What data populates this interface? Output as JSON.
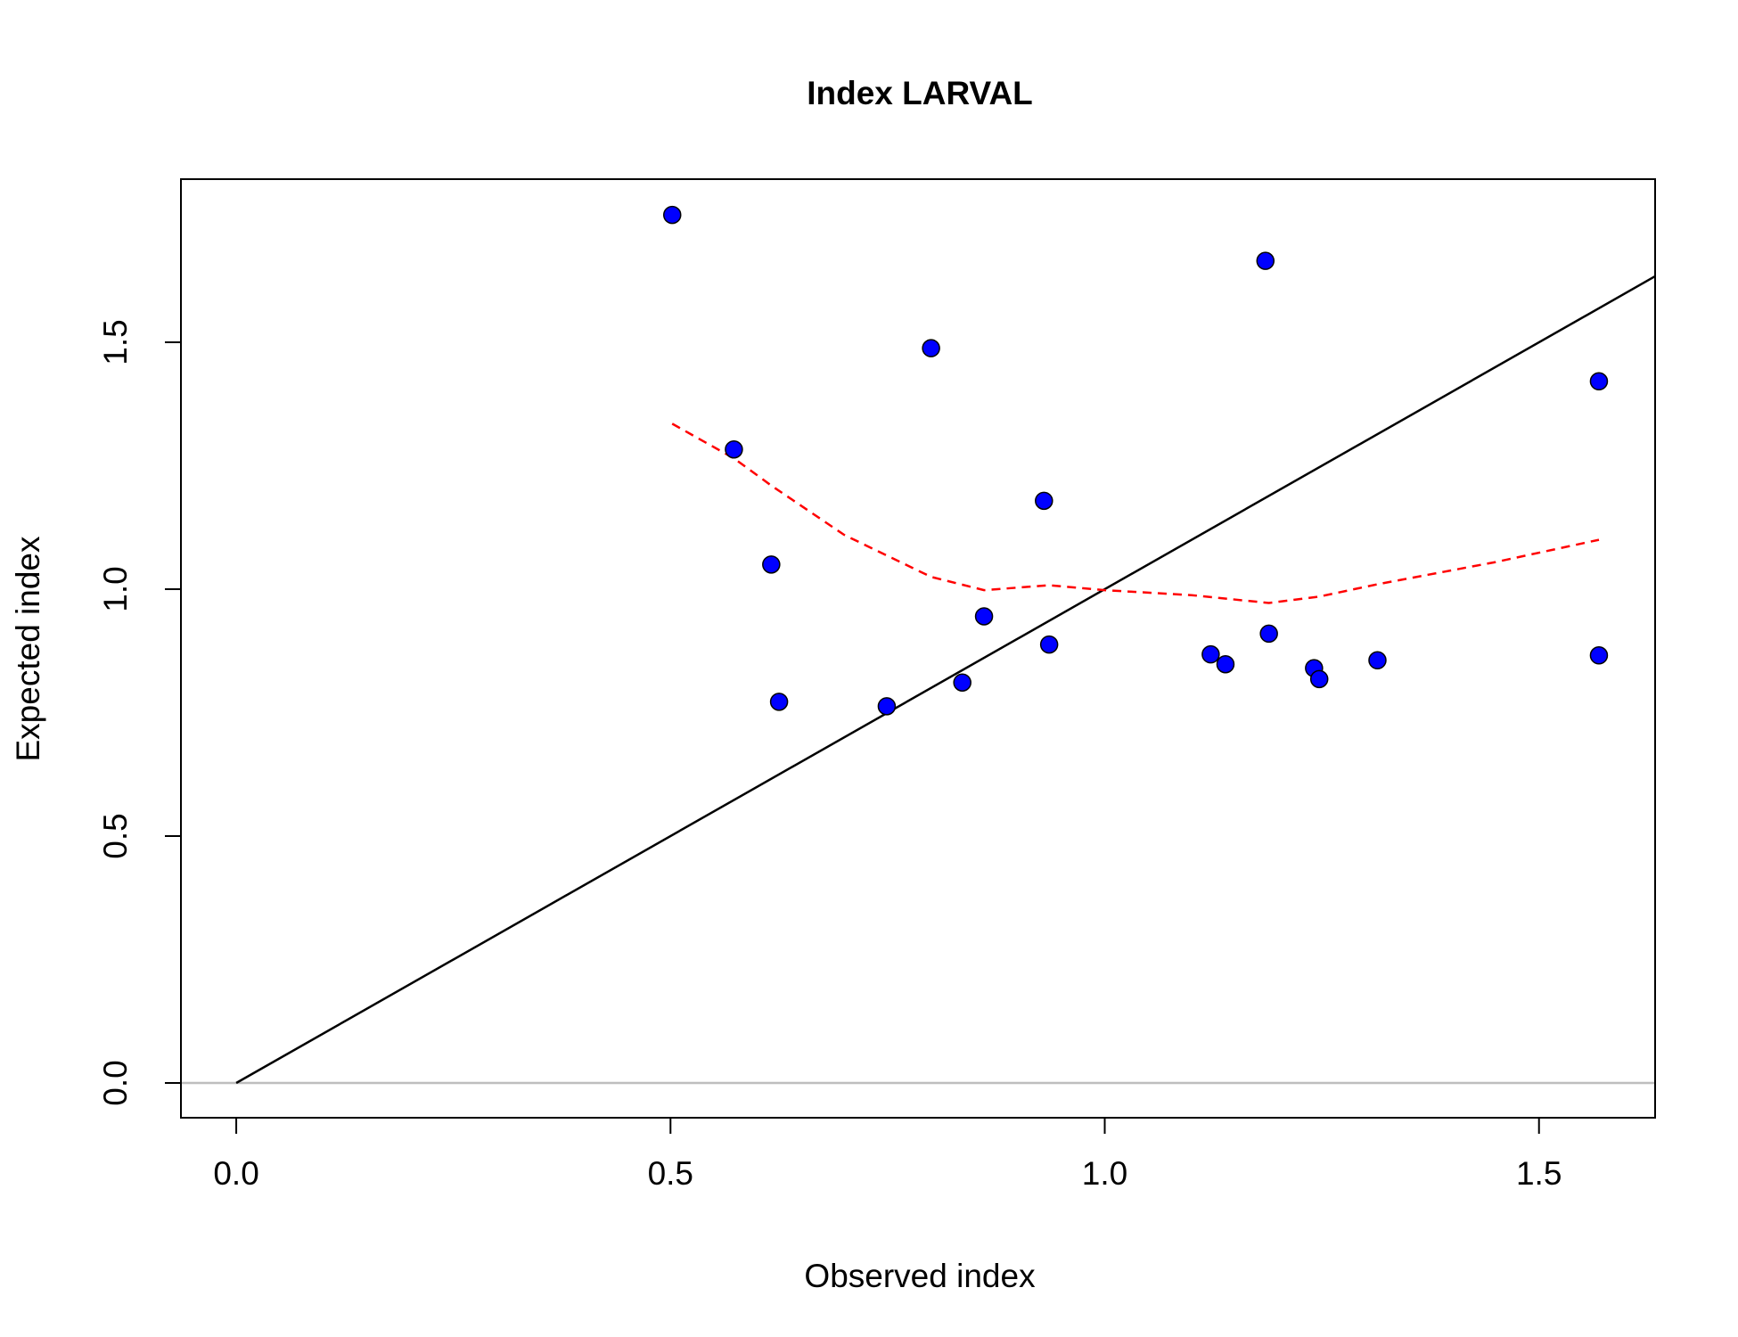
{
  "chart_data": {
    "type": "scatter",
    "title": "Index LARVAL",
    "xlabel": "Observed index",
    "ylabel": "Expected index",
    "xlim": [
      -0.0637,
      1.6337
    ],
    "ylim": [
      -0.0704,
      1.8304
    ],
    "x_ticks": [
      "0.0",
      "0.5",
      "1.0",
      "1.5"
    ],
    "y_ticks": [
      "0.0",
      "0.5",
      "1.0",
      "1.5"
    ],
    "points": [
      {
        "x": 0.502,
        "y": 1.758
      },
      {
        "x": 0.573,
        "y": 1.283
      },
      {
        "x": 0.616,
        "y": 1.05
      },
      {
        "x": 0.625,
        "y": 0.772
      },
      {
        "x": 0.749,
        "y": 0.763
      },
      {
        "x": 0.8,
        "y": 1.488
      },
      {
        "x": 0.836,
        "y": 0.811
      },
      {
        "x": 0.861,
        "y": 0.945
      },
      {
        "x": 0.93,
        "y": 1.179
      },
      {
        "x": 0.936,
        "y": 0.888
      },
      {
        "x": 1.122,
        "y": 0.868
      },
      {
        "x": 1.139,
        "y": 0.848
      },
      {
        "x": 1.185,
        "y": 1.665
      },
      {
        "x": 1.189,
        "y": 0.91
      },
      {
        "x": 1.241,
        "y": 0.84
      },
      {
        "x": 1.247,
        "y": 0.818
      },
      {
        "x": 1.314,
        "y": 0.856
      },
      {
        "x": 1.569,
        "y": 0.866
      },
      {
        "x": 1.569,
        "y": 1.421
      }
    ],
    "identity_line": {
      "from": [
        0,
        0
      ],
      "to": [
        1.6337,
        1.6337
      ],
      "color": "#000000"
    },
    "zero_line": {
      "y": 0,
      "color": "#bebebe"
    },
    "smooth_line": {
      "color": "#ff0000",
      "style": "dashed",
      "x": [
        0.502,
        0.573,
        0.616,
        0.7,
        0.8,
        0.861,
        0.936,
        1.0,
        1.1,
        1.189,
        1.247,
        1.314,
        1.45,
        1.569
      ],
      "y": [
        1.335,
        1.265,
        1.21,
        1.11,
        1.025,
        0.998,
        1.008,
        0.998,
        0.988,
        0.972,
        0.985,
        1.01,
        1.055,
        1.1
      ]
    },
    "point_color": "#0000ff",
    "grid": false
  }
}
